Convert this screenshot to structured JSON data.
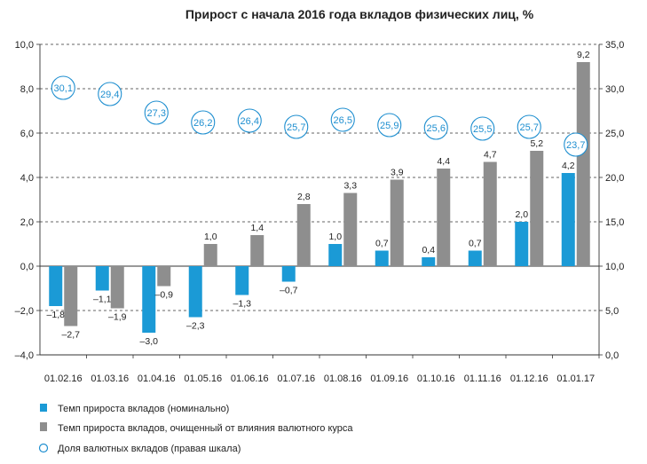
{
  "colors": {
    "nominal": "#1b9ad6",
    "adjusted": "#8e8e8e",
    "bubble": "#1f8fd0",
    "grid": "#333333"
  },
  "chart_data": {
    "type": "bar",
    "title": "Прирост с начала 2016 года вкладов физических лиц, %",
    "categories": [
      "01.02.16",
      "01.03.16",
      "01.04.16",
      "01.05.16",
      "01.06.16",
      "01.07.16",
      "01.08.16",
      "01.09.16",
      "01.10.16",
      "01.11.16",
      "01.12.16",
      "01.01.17"
    ],
    "series": [
      {
        "name": "Темп прироста вкладов (номинально)",
        "axis": "left",
        "color": "#1b9ad6",
        "values": [
          -1.8,
          -1.1,
          -3.0,
          -2.3,
          -1.3,
          -0.7,
          1.0,
          0.7,
          0.4,
          0.7,
          2.0,
          4.2
        ],
        "labels": [
          "–1,8",
          "–1,1",
          "–3,0",
          "–2,3",
          "–1,3",
          "–0,7",
          "1,0",
          "0,7",
          "0,4",
          "0,7",
          "2,0",
          "4,2"
        ]
      },
      {
        "name": "Темп прироста вкладов, очищенный от влияния валютного курса",
        "axis": "left",
        "color": "#8e8e8e",
        "values": [
          -2.7,
          -1.9,
          -0.9,
          1.0,
          1.4,
          2.8,
          3.3,
          3.9,
          4.4,
          4.7,
          5.2,
          9.2
        ],
        "labels": [
          "–2,7",
          "–1,9",
          "–0,9",
          "1,0",
          "1,4",
          "2,8",
          "3,3",
          "3,9",
          "4,4",
          "4,7",
          "5,2",
          "9,2"
        ]
      },
      {
        "name": "Доля валютных вкладов (правая шкала)",
        "axis": "right",
        "type": "scatter",
        "color": "#1f8fd0",
        "values": [
          30.1,
          29.4,
          27.3,
          26.2,
          26.4,
          25.7,
          26.5,
          25.9,
          25.6,
          25.5,
          25.7,
          23.7
        ],
        "labels": [
          "30,1",
          "29,4",
          "27,3",
          "26,2",
          "26,4",
          "25,7",
          "26,5",
          "25,9",
          "25,6",
          "25,5",
          "25,7",
          "23,7"
        ]
      }
    ],
    "y_left": {
      "min": -4,
      "max": 10,
      "step": 2,
      "tick_labels": [
        "–4,0",
        "–2,0",
        "0,0",
        "2,0",
        "4,0",
        "6,0",
        "8,0",
        "10,0"
      ]
    },
    "y_right": {
      "min": 0,
      "max": 35,
      "step": 5,
      "tick_labels": [
        "0,0",
        "5,0",
        "10,0",
        "15,0",
        "20,0",
        "25,0",
        "30,0",
        "35,0"
      ]
    },
    "grid": true,
    "legend_position": "bottom-left"
  }
}
